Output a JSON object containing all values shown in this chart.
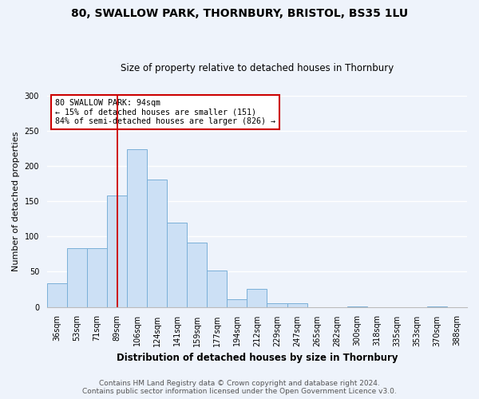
{
  "title1": "80, SWALLOW PARK, THORNBURY, BRISTOL, BS35 1LU",
  "title2": "Size of property relative to detached houses in Thornbury",
  "xlabel": "Distribution of detached houses by size in Thornbury",
  "ylabel": "Number of detached properties",
  "categories": [
    "36sqm",
    "53sqm",
    "71sqm",
    "89sqm",
    "106sqm",
    "124sqm",
    "141sqm",
    "159sqm",
    "177sqm",
    "194sqm",
    "212sqm",
    "229sqm",
    "247sqm",
    "265sqm",
    "282sqm",
    "300sqm",
    "318sqm",
    "335sqm",
    "353sqm",
    "370sqm",
    "388sqm"
  ],
  "values": [
    34,
    83,
    83,
    158,
    224,
    181,
    120,
    91,
    52,
    11,
    26,
    5,
    5,
    0,
    0,
    1,
    0,
    0,
    0,
    1,
    0
  ],
  "bar_color": "#cce0f5",
  "bar_edge_color": "#7ab0d8",
  "vline_x_index": 3,
  "vline_color": "#cc0000",
  "annotation_title": "80 SWALLOW PARK: 94sqm",
  "annotation_line1": "← 15% of detached houses are smaller (151)",
  "annotation_line2": "84% of semi-detached houses are larger (826) →",
  "annotation_box_color": "#cc0000",
  "ylim": [
    0,
    300
  ],
  "yticks": [
    0,
    50,
    100,
    150,
    200,
    250,
    300
  ],
  "footer1": "Contains HM Land Registry data © Crown copyright and database right 2024.",
  "footer2": "Contains public sector information licensed under the Open Government Licence v3.0.",
  "bg_color": "#eef3fb",
  "plot_bg_color": "#eef3fb",
  "grid_color": "#ffffff",
  "title1_fontsize": 10,
  "title2_fontsize": 8.5,
  "ylabel_fontsize": 8,
  "xlabel_fontsize": 8.5,
  "tick_fontsize": 7,
  "footer_fontsize": 6.5
}
